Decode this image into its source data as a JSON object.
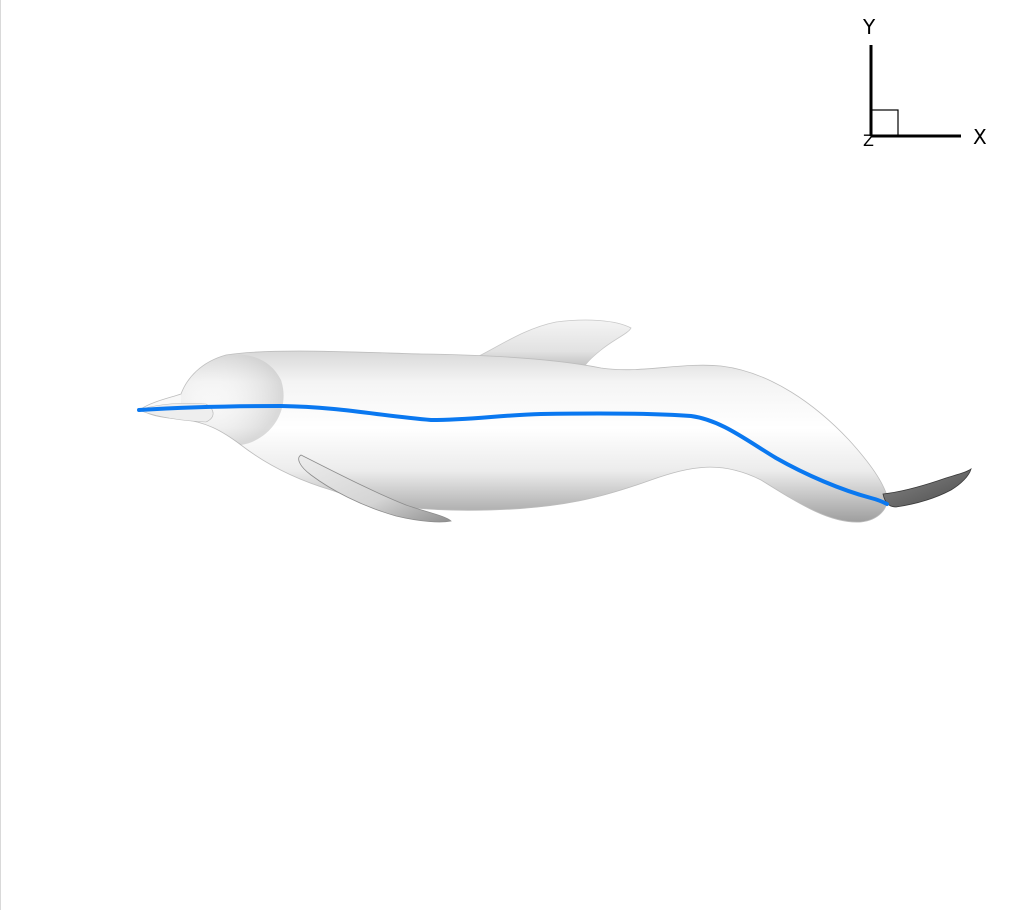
{
  "axes_triad": {
    "x_label": "X",
    "y_label": "Y",
    "z_label": "Z"
  },
  "colors": {
    "background": "#ffffff",
    "midline": "#0a78f0",
    "body_light": "#f6f6f6",
    "body_mid": "#dcdcdc",
    "body_dark": "#a9a9a9",
    "fluke": "#6e6e6e"
  }
}
